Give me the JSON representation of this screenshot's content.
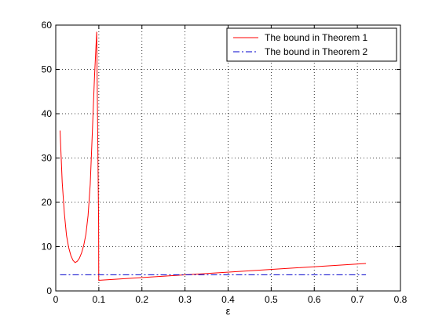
{
  "chart_data": {
    "type": "line",
    "title": "",
    "xlabel": "ε",
    "ylabel": "",
    "xlim": [
      0,
      0.8
    ],
    "ylim": [
      0,
      60
    ],
    "xticks": [
      0,
      0.1,
      0.2,
      0.3,
      0.4,
      0.5,
      0.6,
      0.7,
      0.8
    ],
    "yticks": [
      0,
      10,
      20,
      30,
      40,
      50,
      60
    ],
    "xtick_labels": [
      "0",
      "0.1",
      "0.2",
      "0.3",
      "0.4",
      "0.5",
      "0.6",
      "0.7",
      "0.8"
    ],
    "ytick_labels": [
      "0",
      "10",
      "20",
      "30",
      "40",
      "50",
      "60"
    ],
    "grid": true,
    "legend_position": "top-right",
    "series": [
      {
        "name": "The bound in Theorem 1",
        "color": "#ff0000",
        "style": "solid",
        "x": [
          0.01,
          0.015,
          0.02,
          0.025,
          0.03,
          0.035,
          0.04,
          0.045,
          0.05,
          0.055,
          0.06,
          0.065,
          0.07,
          0.075,
          0.08,
          0.085,
          0.09,
          0.095,
          0.0995,
          0.0998,
          0.1,
          0.72
        ],
        "y": [
          36.2,
          24.5,
          17.5,
          12.5,
          9.8,
          8.0,
          6.9,
          6.4,
          6.7,
          7.4,
          8.6,
          10.3,
          12.8,
          17.0,
          24.0,
          36.0,
          48.5,
          58.5,
          15.0,
          2.4,
          2.4,
          6.2
        ]
      },
      {
        "name": "The bound in Theorem 2",
        "color": "#0000cc",
        "style": "dashdot",
        "x": [
          0.01,
          0.72
        ],
        "y": [
          3.65,
          3.65
        ]
      }
    ]
  }
}
